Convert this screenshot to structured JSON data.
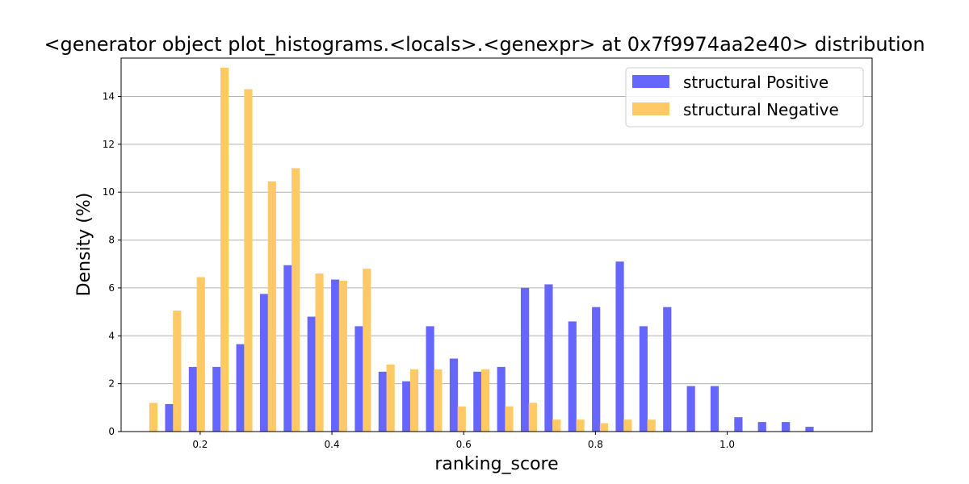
{
  "chart_data": {
    "type": "bar",
    "title": "<generator object plot_histograms.<locals>.<genexpr> at 0x7f9974aa2e40> distribution",
    "xlabel": "ranking_score",
    "ylabel": "Density (%)",
    "xlim": [
      0.08,
      1.22
    ],
    "ylim": [
      0,
      15.6
    ],
    "xticks": [
      0.2,
      0.4,
      0.6,
      0.8,
      1.0
    ],
    "xtick_labels": [
      "0.2",
      "0.4",
      "0.6",
      "0.8",
      "1.0"
    ],
    "yticks": [
      0,
      2,
      4,
      6,
      8,
      10,
      12,
      14
    ],
    "ytick_labels": [
      "0",
      "2",
      "4",
      "6",
      "8",
      "10",
      "12",
      "14"
    ],
    "grid": "horizontal",
    "legend_position": "top-right",
    "bar_width": 0.0125,
    "series": [
      {
        "name": "structural Positive",
        "color": "#6666ff",
        "x": [
          0.153,
          0.189,
          0.225,
          0.261,
          0.297,
          0.333,
          0.369,
          0.405,
          0.441,
          0.477,
          0.513,
          0.549,
          0.585,
          0.621,
          0.657,
          0.693,
          0.729,
          0.765,
          0.801,
          0.837,
          0.873,
          0.909,
          0.945,
          0.981,
          1.017,
          1.053,
          1.089,
          1.125
        ],
        "values": [
          1.15,
          2.7,
          2.7,
          3.65,
          5.75,
          6.95,
          4.8,
          6.35,
          4.4,
          2.5,
          2.1,
          4.4,
          3.05,
          2.5,
          2.7,
          6.0,
          6.15,
          4.6,
          5.2,
          7.1,
          4.4,
          5.2,
          1.9,
          1.9,
          0.6,
          0.4,
          0.4,
          0.2
        ]
      },
      {
        "name": "structural Negative",
        "color": "#ffc966",
        "x": [
          0.129,
          0.165,
          0.201,
          0.237,
          0.273,
          0.309,
          0.345,
          0.381,
          0.417,
          0.453,
          0.489,
          0.525,
          0.561,
          0.597,
          0.633,
          0.669,
          0.705,
          0.741,
          0.777,
          0.813,
          0.849,
          0.885
        ],
        "values": [
          1.2,
          5.05,
          6.45,
          15.2,
          14.3,
          10.45,
          11.0,
          6.6,
          6.3,
          6.8,
          2.8,
          2.6,
          2.6,
          1.05,
          2.6,
          1.05,
          1.2,
          0.5,
          0.5,
          0.35,
          0.5,
          0.5
        ]
      }
    ]
  }
}
